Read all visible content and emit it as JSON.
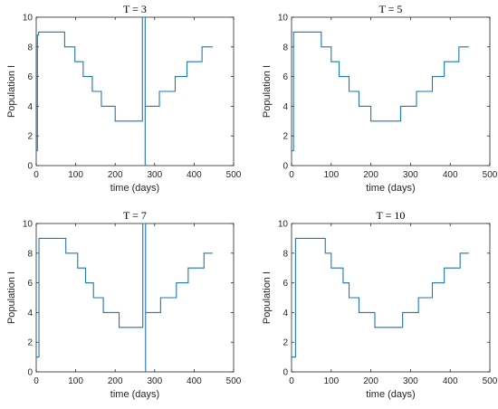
{
  "style": {
    "line_color": "#1f77b4",
    "axis_color": "#262626"
  },
  "chart_data": [
    {
      "type": "line",
      "title": "T = 3",
      "xlabel": "time (days)",
      "ylabel": "Population I",
      "xlim": [
        0,
        500
      ],
      "ylim": [
        0,
        10
      ],
      "xticks": [
        "0",
        "100",
        "200",
        "300",
        "400",
        "500"
      ],
      "yticks": [
        "0",
        "2",
        "4",
        "6",
        "8",
        "10"
      ],
      "grid": false,
      "series": [
        {
          "x": [
            0,
            3,
            3,
            6,
            6,
            72,
            72,
            98,
            98,
            119,
            119,
            142,
            142,
            165,
            165,
            200,
            200,
            269,
            269,
            276,
            276,
            276,
            276,
            312,
            312,
            352,
            352,
            382,
            382,
            420,
            420,
            447
          ],
          "y": [
            1,
            1,
            8.8,
            8.8,
            9,
            9,
            8,
            8,
            7,
            7,
            6,
            6,
            5,
            5,
            4,
            4,
            3,
            3,
            10,
            10,
            0,
            10,
            4,
            4,
            5,
            5,
            6,
            6,
            7,
            7,
            8,
            8
          ]
        }
      ]
    },
    {
      "type": "line",
      "title": "T = 5",
      "xlabel": "time (days)",
      "ylabel": "Population I",
      "xlim": [
        0,
        500
      ],
      "ylim": [
        0,
        10
      ],
      "xticks": [
        "0",
        "100",
        "200",
        "300",
        "400",
        "500"
      ],
      "yticks": [
        "0",
        "2",
        "4",
        "6",
        "8",
        "10"
      ],
      "grid": false,
      "series": [
        {
          "x": [
            0,
            5,
            5,
            75,
            75,
            100,
            100,
            120,
            120,
            145,
            145,
            170,
            170,
            200,
            200,
            275,
            275,
            315,
            315,
            355,
            355,
            385,
            385,
            422,
            422,
            447
          ],
          "y": [
            1,
            1,
            9,
            9,
            8,
            8,
            7,
            7,
            6,
            6,
            5,
            5,
            4,
            4,
            3,
            3,
            4,
            4,
            5,
            5,
            6,
            6,
            7,
            7,
            8,
            8
          ]
        }
      ]
    },
    {
      "type": "line",
      "title": "T = 7",
      "xlabel": "time (days)",
      "ylabel": "Population I",
      "xlim": [
        0,
        500
      ],
      "ylim": [
        0,
        10
      ],
      "xticks": [
        "0",
        "100",
        "200",
        "300",
        "400",
        "500"
      ],
      "yticks": [
        "0",
        "2",
        "4",
        "6",
        "8",
        "10"
      ],
      "grid": false,
      "series": [
        {
          "x": [
            0,
            7,
            7,
            75,
            75,
            105,
            105,
            125,
            125,
            145,
            145,
            170,
            170,
            210,
            210,
            270,
            270,
            277,
            277,
            277,
            277,
            315,
            315,
            355,
            355,
            385,
            385,
            425,
            425,
            447
          ],
          "y": [
            1,
            1,
            9,
            9,
            8,
            8,
            7,
            7,
            6,
            6,
            5,
            5,
            4,
            4,
            3,
            3,
            10,
            10,
            0,
            10,
            4,
            4,
            5,
            5,
            6,
            6,
            7,
            7,
            8,
            8
          ]
        }
      ]
    },
    {
      "type": "line",
      "title": "T = 10",
      "xlabel": "time (days)",
      "ylabel": "Population I",
      "xlim": [
        0,
        500
      ],
      "ylim": [
        0,
        10
      ],
      "xticks": [
        "0",
        "100",
        "200",
        "300",
        "400",
        "500"
      ],
      "yticks": [
        "0",
        "2",
        "4",
        "6",
        "8",
        "10"
      ],
      "grid": false,
      "series": [
        {
          "x": [
            0,
            10,
            10,
            85,
            85,
            100,
            100,
            130,
            130,
            145,
            145,
            170,
            170,
            210,
            210,
            280,
            280,
            320,
            320,
            355,
            355,
            385,
            385,
            425,
            425,
            447
          ],
          "y": [
            1,
            1,
            9,
            9,
            8,
            8,
            7,
            7,
            6,
            6,
            5,
            5,
            4,
            4,
            3,
            3,
            4,
            4,
            5,
            5,
            6,
            6,
            7,
            7,
            8,
            8
          ]
        }
      ]
    }
  ]
}
